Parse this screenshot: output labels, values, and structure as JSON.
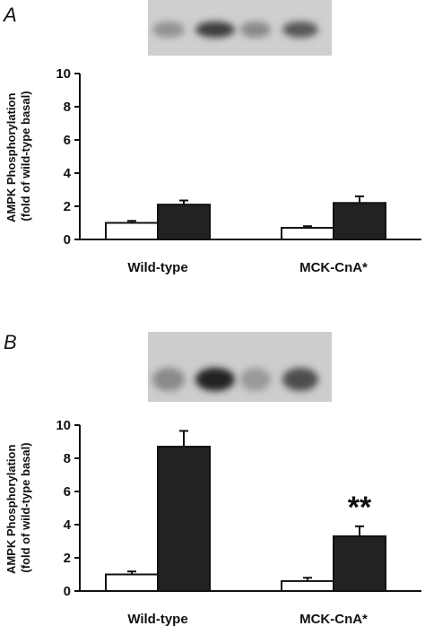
{
  "chart_data": [
    {
      "panel_label": "A",
      "type": "bar",
      "categories": [
        "Wild-type",
        "MCK-CnA*"
      ],
      "series": [
        {
          "values": [
            1.0,
            0.7
          ],
          "errors": [
            0.12,
            0.1
          ],
          "color": "#ffffff"
        },
        {
          "values": [
            2.1,
            2.2
          ],
          "errors": [
            0.25,
            0.4
          ],
          "color": "#222222"
        }
      ],
      "ylabel": [
        "AMPK Phosphorylation",
        "(fold of wild-type basal)"
      ],
      "ylim": [
        0,
        10
      ],
      "yticks": [
        "0",
        "2",
        "4",
        "6",
        "8",
        "10"
      ],
      "annotations": [],
      "blot_band_intensity": [
        0.35,
        0.85,
        0.4,
        0.7
      ]
    },
    {
      "panel_label": "B",
      "type": "bar",
      "categories": [
        "Wild-type",
        "MCK-CnA*"
      ],
      "series": [
        {
          "values": [
            1.0,
            0.6
          ],
          "errors": [
            0.18,
            0.2
          ],
          "color": "#ffffff"
        },
        {
          "values": [
            8.7,
            3.3
          ],
          "errors": [
            0.95,
            0.6
          ],
          "color": "#222222"
        }
      ],
      "ylabel": [
        "AMPK Phosphorylation",
        "(fold of wild-type basal)"
      ],
      "ylim": [
        0,
        10
      ],
      "yticks": [
        "0",
        "2",
        "4",
        "6",
        "8",
        "10"
      ],
      "annotations": [
        "**"
      ],
      "blot_band_intensity": [
        0.4,
        1.0,
        0.3,
        0.75
      ]
    }
  ]
}
